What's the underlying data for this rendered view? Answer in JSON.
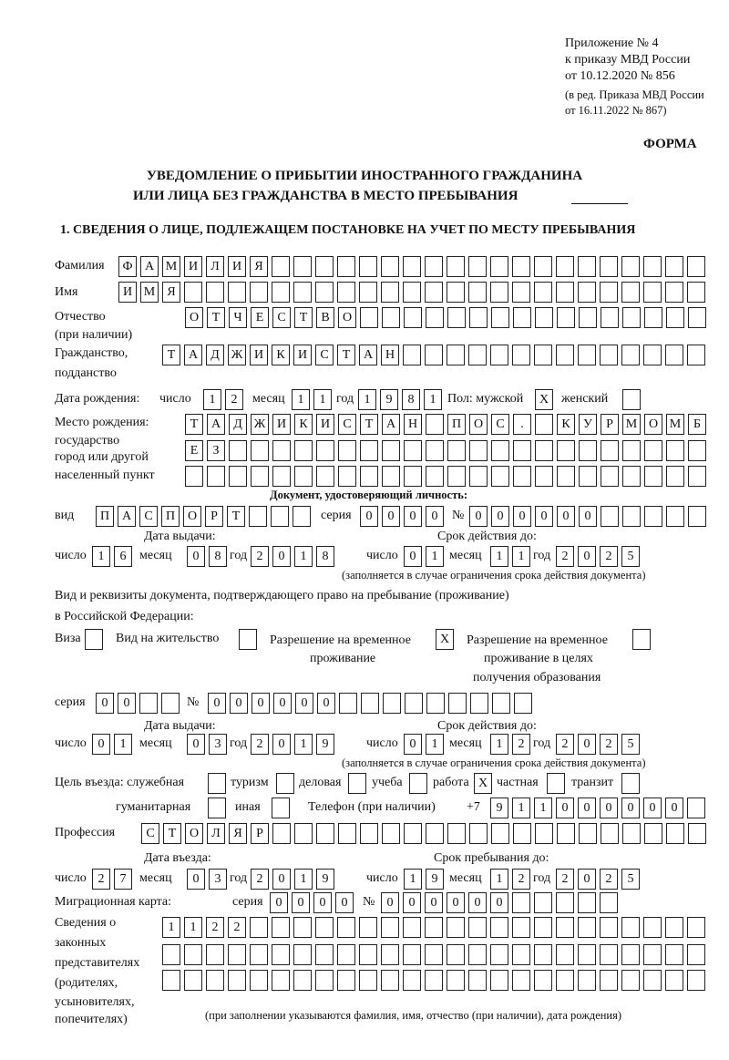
{
  "header": {
    "appendix": [
      "Приложение № 4",
      "к приказу МВД России",
      "от 10.12.2020 № 856"
    ],
    "edition": [
      "(в ред. Приказа МВД России",
      "от 16.11.2022 № 867)"
    ],
    "form_label": "ФОРМА",
    "title_line1": "УВЕДОМЛЕНИЕ О ПРИБЫТИИ ИНОСТРАННОГО ГРАЖДАНИНА",
    "title_line2": "ИЛИ ЛИЦА БЕЗ ГРАЖДАНСТВА В МЕСТО ПРЕБЫВАНИЯ",
    "section1": "1. СВЕДЕНИЯ О ЛИЦЕ, ПОДЛЕЖАЩЕМ ПОСТАНОВКЕ НА УЧЕТ ПО МЕСТУ ПРЕБЫВАНИЯ"
  },
  "labels": {
    "surname": "Фамилия",
    "name": "Имя",
    "patronymic": "Отчество",
    "patronymic_note": "(при наличии)",
    "citizenship": "Гражданство,",
    "citizenship2": "подданство",
    "birth_date": "Дата рождения:",
    "day": "число",
    "month": "месяц",
    "year": "год",
    "sex": "Пол: мужской",
    "female": "женский",
    "birth_place": [
      "Место рождения:",
      "государство",
      "город или другой",
      "населенный пункт"
    ],
    "id_doc_title": "Документ, удостоверяющий личность:",
    "kind": "вид",
    "series": "серия",
    "number": "№",
    "issue_date": "Дата выдачи:",
    "valid_until": "Срок действия до:",
    "validity_note": "(заполняется в случае ограничения срока действия документа)",
    "stay_doc_title1": "Вид и реквизиты документа, подтверждающего право на пребывание (проживание)",
    "stay_doc_title2": "в Российской Федерации:",
    "purpose": "Цель въезда: служебная",
    "phone": "Телефон (при наличии)",
    "phone_prefix": "+7",
    "profession": "Профессия",
    "entry_date": "Дата въезда:",
    "stay_until": "Срок пребывания до:",
    "migration_card": "Миграционная карта:",
    "representatives": [
      "Сведения о",
      "законных",
      "представителях",
      "(родителях,",
      "усыновителях,",
      "попечителях)"
    ],
    "representatives_note": "(при заполнении указываются фамилия, имя, отчество (при наличии), дата рождения)"
  },
  "person": {
    "surname": "ФАМИЛИЯ",
    "name": "ИМЯ",
    "patronymic": "ОТЧЕСТВО",
    "citizenship": "ТАДЖИКИСТАН",
    "birth_date": {
      "day": "12",
      "month": "11",
      "year": "1981"
    },
    "sex": {
      "male": "X",
      "female": ""
    },
    "birth_place": {
      "line1": "ТАДЖИКИСТАН ПОС. КУРМОМБ",
      "line2": "ЕЗ",
      "line3": ""
    }
  },
  "id_document": {
    "kind": "ПАСПОРТ",
    "series": "0000",
    "number": "000000",
    "issue_date": {
      "day": "16",
      "month": "08",
      "year": "2018"
    },
    "valid_until": {
      "day": "01",
      "month": "11",
      "year": "2025"
    }
  },
  "stay_document": {
    "options": [
      {
        "label": "Виза",
        "mark": ""
      },
      {
        "label": "Вид на жительство",
        "mark": ""
      },
      {
        "label": "Разрешение на временное",
        "label2": "проживание",
        "mark": "X"
      },
      {
        "label": "Разрешение на временное",
        "label2": "проживание в целях",
        "label3": "получения образования",
        "mark": ""
      }
    ],
    "series": "00",
    "number": "000000",
    "issue_date": {
      "day": "01",
      "month": "03",
      "year": "2019"
    },
    "valid_until": {
      "day": "01",
      "month": "12",
      "year": "2025"
    }
  },
  "purpose": {
    "options": [
      {
        "label": "служебная",
        "mark": ""
      },
      {
        "label": "туризм",
        "mark": ""
      },
      {
        "label": "деловая",
        "mark": ""
      },
      {
        "label": "учеба",
        "mark": ""
      },
      {
        "label": "работа",
        "mark": "X"
      },
      {
        "label": "частная",
        "mark": ""
      },
      {
        "label": "транзит",
        "mark": ""
      },
      {
        "label": "гуманитарная",
        "mark": ""
      },
      {
        "label": "иная",
        "mark": ""
      }
    ]
  },
  "phone": "911000000",
  "profession": "СТОЛЯР",
  "entry_date": {
    "day": "27",
    "month": "03",
    "year": "2019"
  },
  "stay_until": {
    "day": "19",
    "month": "12",
    "year": "2025"
  },
  "migration_card": {
    "series": "0000",
    "number": "000000"
  },
  "representatives": {
    "line1": "1122",
    "line2": "",
    "line3": ""
  }
}
